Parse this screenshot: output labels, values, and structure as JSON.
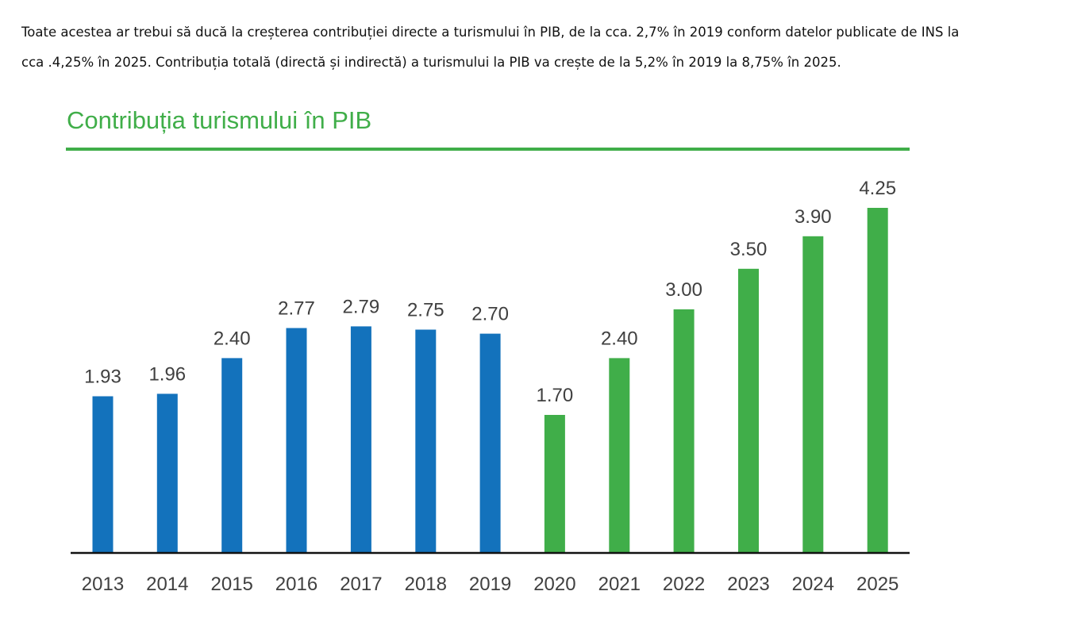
{
  "article": {
    "line1": "Toate acestea ar trebui să ducă la creșterea contribuției directe a turismului în PIB, de la cca. 2,7% în 2019 conform datelor publicate de INS la",
    "line2": "cca .4,25% în 2025. Contribuția totală (directă și indirectă) a turismului la PIB va crește de la 5,2% în 2019 la 8,75% în 2025."
  },
  "colors": {
    "historical": "#1372BC",
    "forecast": "#40AE49",
    "title": "#40AE49",
    "axis": "#111111",
    "labels": "#404040"
  },
  "chart_data": {
    "type": "bar",
    "title": "Contribuția turismului în PIB",
    "xlabel": "",
    "ylabel": "",
    "categories": [
      "2013",
      "2014",
      "2015",
      "2016",
      "2017",
      "2018",
      "2019",
      "2020",
      "2021",
      "2022",
      "2023",
      "2024",
      "2025"
    ],
    "values": [
      1.93,
      1.96,
      2.4,
      2.77,
      2.79,
      2.75,
      2.7,
      1.7,
      2.4,
      3.0,
      3.5,
      3.9,
      4.25
    ],
    "value_labels": [
      "1.93",
      "1.96",
      "2.40",
      "2.77",
      "2.79",
      "2.75",
      "2.70",
      "1.70",
      "2.40",
      "3.00",
      "3.50",
      "3.90",
      "4.25"
    ],
    "bar_colors": [
      "historical",
      "historical",
      "historical",
      "historical",
      "historical",
      "historical",
      "historical",
      "forecast",
      "forecast",
      "forecast",
      "forecast",
      "forecast",
      "forecast"
    ],
    "ylim": [
      0,
      4.25
    ],
    "grid": false,
    "legend": "none"
  }
}
